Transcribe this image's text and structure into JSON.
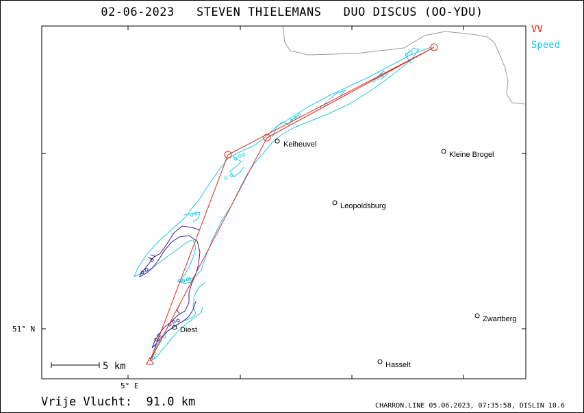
{
  "title": "02-06-2023   STEVEN THIELEMANS   DUO DISCUS (OO-YDU)",
  "legend": [
    {
      "label": "VV",
      "color": "#e8241a"
    },
    {
      "label": "Speed",
      "color": "#1ec8e6"
    }
  ],
  "axes": {
    "lat_label": "51° N",
    "lon_label": "5° E"
  },
  "scale_bar": {
    "label": "5 km"
  },
  "towns": [
    {
      "name": "Keiheuvel"
    },
    {
      "name": "Kleine Brogel"
    },
    {
      "name": "Leopoldsburg"
    },
    {
      "name": "Zwartberg"
    },
    {
      "name": "Diest"
    },
    {
      "name": "Hasselt"
    }
  ],
  "footer": {
    "flight_label": "Vrije Vlucht:",
    "distance": "91.0 km",
    "info": "CHARRON.LINE 05.06.2023, 07:35:58, DISLIN 10.6"
  },
  "colors": {
    "task": "#e8241a",
    "track_speed": "#1ec8e6",
    "track_vario": "#3a1a8c",
    "border": "#999999"
  }
}
